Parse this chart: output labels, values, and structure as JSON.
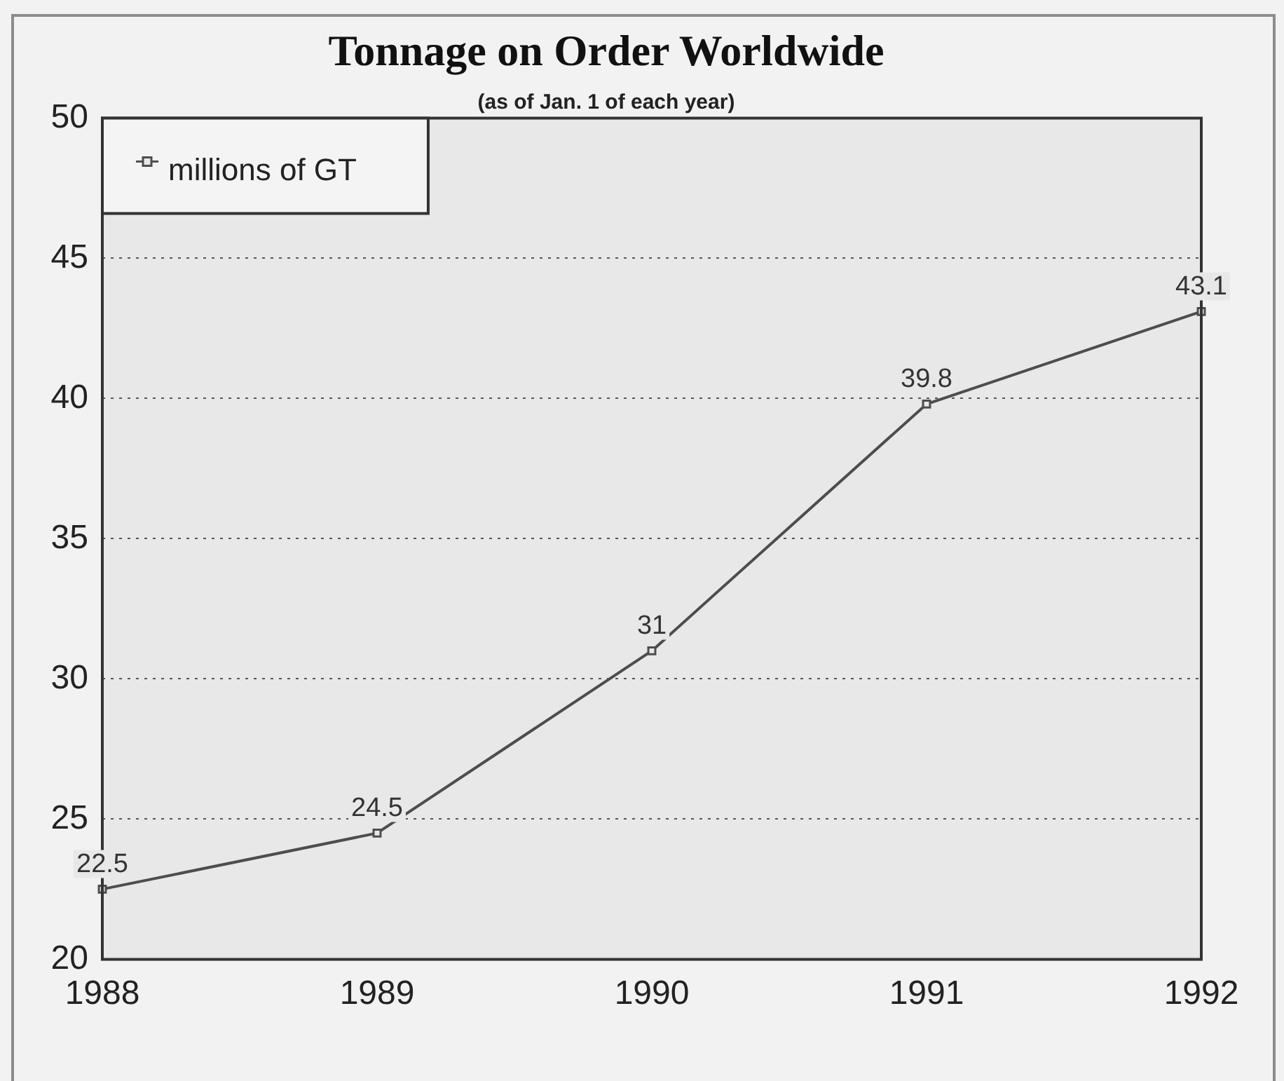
{
  "chart_data": {
    "type": "line",
    "title": "Tonnage on Order Worldwide",
    "subtitle": "(as of Jan. 1 of each year)",
    "categories": [
      "1988",
      "1989",
      "1990",
      "1991",
      "1992"
    ],
    "series": [
      {
        "name": "millions of GT",
        "color": "#4d4d4d",
        "values": [
          22.5,
          24.5,
          31,
          39.8,
          43.1
        ]
      }
    ],
    "ylim": [
      20,
      50
    ],
    "yticks": [
      20,
      25,
      30,
      35,
      40,
      45,
      50
    ],
    "grid": "y",
    "legend": "top left",
    "marker": "square",
    "line_style": "solid",
    "data_labels": true
  }
}
